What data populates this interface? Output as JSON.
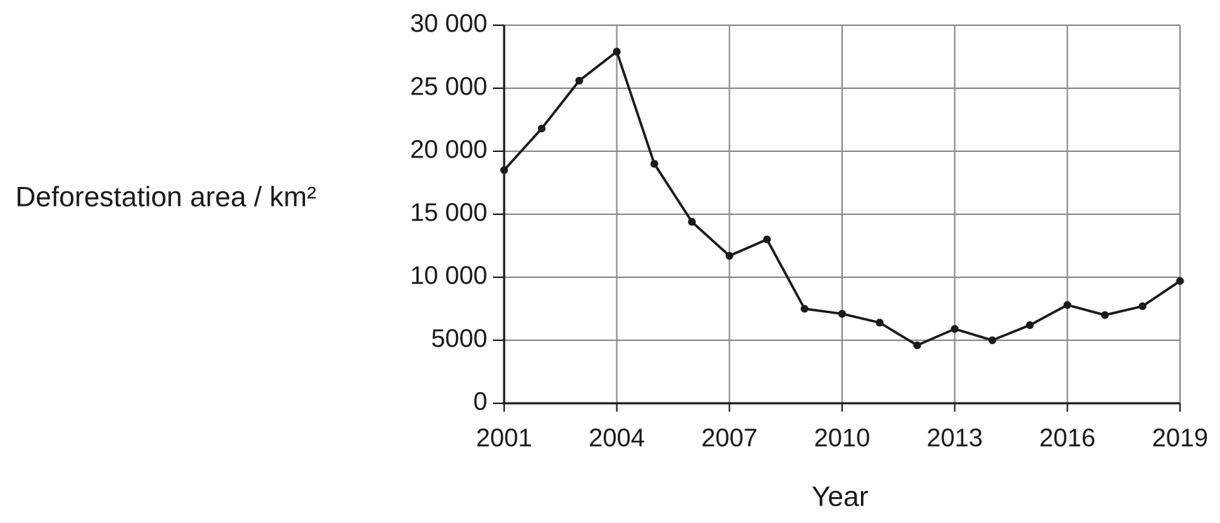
{
  "chart_data": {
    "type": "line",
    "xlabel": "Year",
    "ylabel": "Deforestation area / km²",
    "x": [
      2001,
      2002,
      2003,
      2004,
      2005,
      2006,
      2007,
      2008,
      2009,
      2010,
      2011,
      2012,
      2013,
      2014,
      2015,
      2016,
      2017,
      2018,
      2019
    ],
    "series": [
      {
        "color": "#1a1a1a",
        "values": [
          18500,
          21800,
          25600,
          27900,
          19000,
          14400,
          11700,
          13000,
          7500,
          7100,
          6400,
          4600,
          5900,
          5000,
          6200,
          7800,
          7000,
          7700,
          9700
        ]
      }
    ],
    "xlim": [
      2001,
      2019
    ],
    "xticks": [
      2001,
      2004,
      2007,
      2010,
      2013,
      2016,
      2019
    ],
    "ylim": [
      0,
      30000
    ],
    "yticks": [
      0,
      5000,
      {
        "value": 10000,
        "label": "10 000"
      },
      {
        "value": 15000,
        "label": "15 000"
      },
      {
        "value": 20000,
        "label": "20 000"
      },
      {
        "value": 25000,
        "label": "25 000"
      },
      {
        "value": 30000,
        "label": "30 000"
      }
    ],
    "grid": true
  }
}
